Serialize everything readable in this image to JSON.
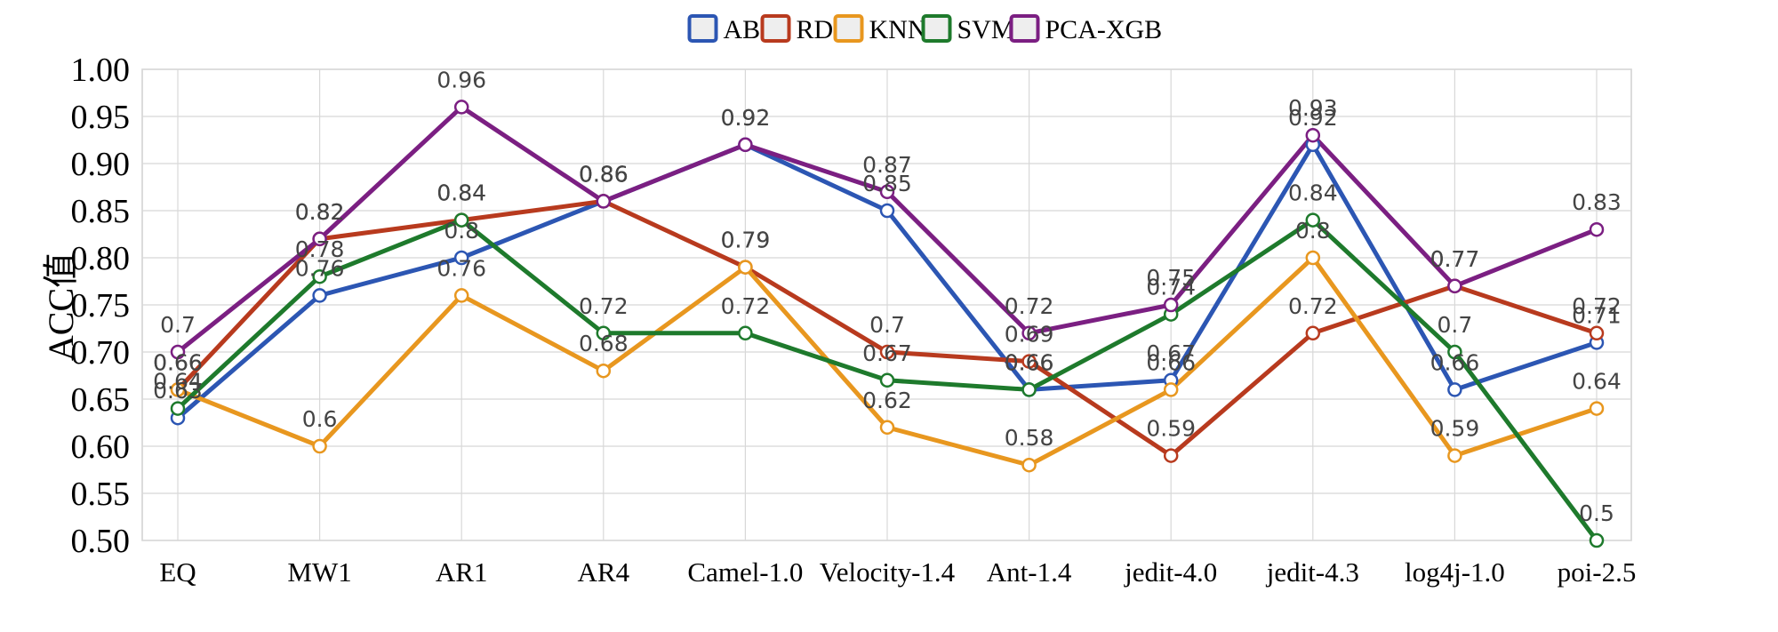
{
  "chart_data": {
    "type": "line",
    "title": "",
    "xlabel": "",
    "ylabel": "ACC值",
    "ylim": [
      0.5,
      1.0
    ],
    "yticks": [
      "0.50",
      "0.55",
      "0.60",
      "0.65",
      "0.70",
      "0.75",
      "0.80",
      "0.85",
      "0.90",
      "0.95",
      "1.00"
    ],
    "ytick_values": [
      0.5,
      0.55,
      0.6,
      0.65,
      0.7,
      0.75,
      0.8,
      0.85,
      0.9,
      0.95,
      1.0
    ],
    "grid": true,
    "legend_position": "top",
    "categories": [
      "EQ",
      "MW1",
      "AR1",
      "AR4",
      "Camel-1.0",
      "Velocity-1.4",
      "Ant-1.4",
      "jedit-4.0",
      "jedit-4.3",
      "log4j-1.0",
      "poi-2.5"
    ],
    "series": [
      {
        "name": "AB",
        "color": "#2c56b3",
        "values": [
          0.63,
          0.76,
          0.8,
          0.86,
          0.92,
          0.85,
          0.66,
          0.67,
          0.92,
          0.66,
          0.71
        ],
        "labels": [
          "0.63",
          "0.76",
          "0.8",
          "0.86",
          "0.92",
          "0.85",
          "0.66",
          "0.67",
          "0.92",
          "0.66",
          "0.71"
        ]
      },
      {
        "name": "RD",
        "color": "#b83a1e",
        "values": [
          0.66,
          0.82,
          0.84,
          0.86,
          0.79,
          0.7,
          0.69,
          0.59,
          0.72,
          0.77,
          0.72
        ],
        "labels": [
          "0.66",
          "0.82",
          "0.84",
          "0.86",
          "0.79",
          "0.7",
          "0.69",
          "0.59",
          "0.72",
          "0.77",
          "0.72"
        ]
      },
      {
        "name": "KNN",
        "color": "#e8971f",
        "values": [
          0.66,
          0.6,
          0.76,
          0.68,
          0.79,
          0.62,
          0.58,
          0.66,
          0.8,
          0.59,
          0.64
        ],
        "labels": [
          "0.66",
          "0.6",
          "0.76",
          "0.68",
          "0.79",
          "0.62",
          "0.58",
          "0.66",
          "0.8",
          "0.59",
          "0.64"
        ]
      },
      {
        "name": "SVM",
        "color": "#1e7a2c",
        "values": [
          0.64,
          0.78,
          0.84,
          0.72,
          0.72,
          0.67,
          0.66,
          0.74,
          0.84,
          0.7,
          0.5
        ],
        "labels": [
          "0.64",
          "0.78",
          "0.84",
          "0.72",
          "0.72",
          "0.67",
          "0.66",
          "0.74",
          "0.84",
          "0.7",
          "0.5"
        ]
      },
      {
        "name": "PCA-XGB",
        "color": "#7b1f82",
        "values": [
          0.7,
          0.82,
          0.96,
          0.86,
          0.92,
          0.87,
          0.72,
          0.75,
          0.93,
          0.77,
          0.83
        ],
        "labels": [
          "0.7",
          "0.82",
          "0.96",
          "0.86",
          "0.92",
          "0.87",
          "0.72",
          "0.75",
          "0.93",
          "0.77",
          "0.83"
        ]
      }
    ]
  }
}
